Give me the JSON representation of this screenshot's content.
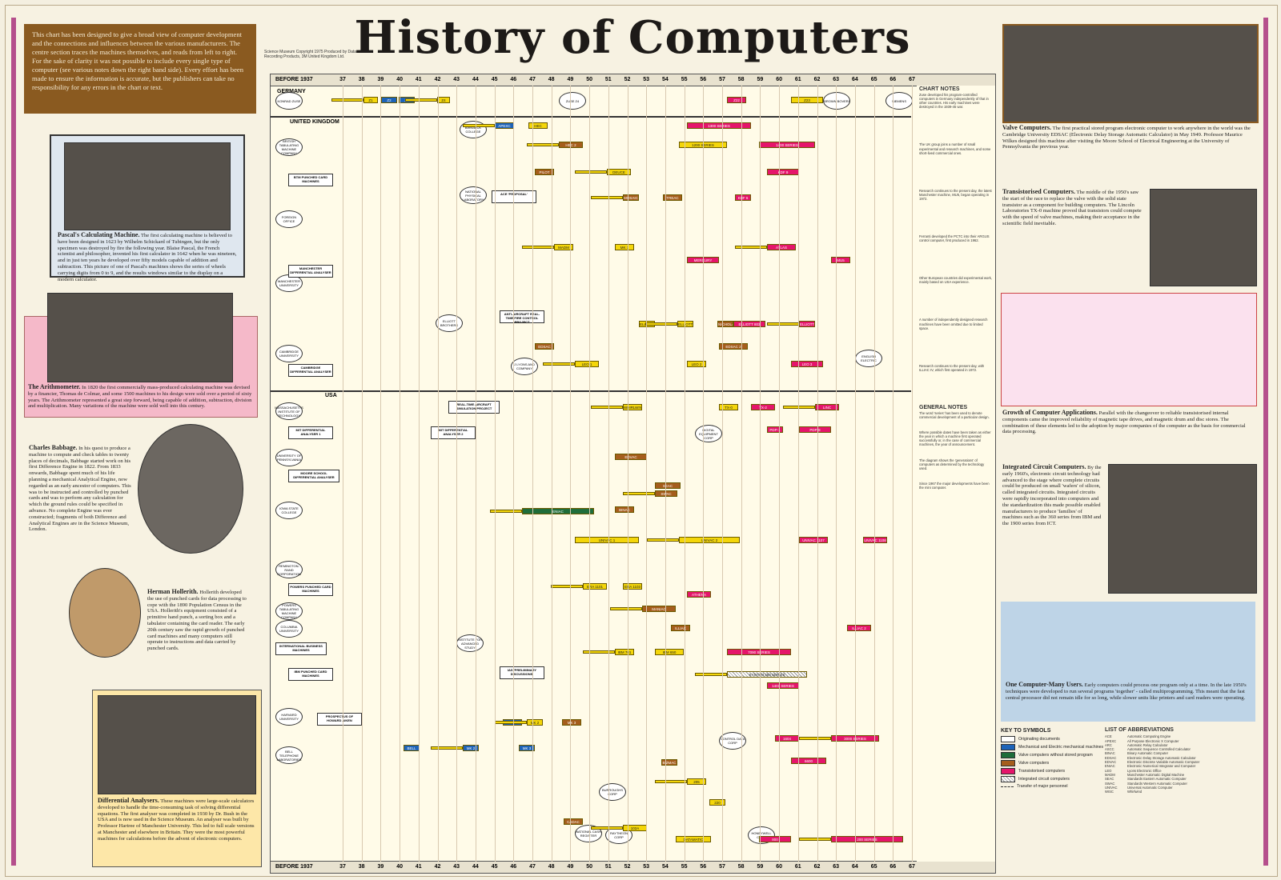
{
  "title": "History of Computers",
  "intro": "This chart has been designed to give a broad view of computer development and the connections and influences between the various manufacturers. The centre section traces the machines themselves, and reads from left to right. For the sake of clarity it was not possible to include every single type of computer (see various notes down the right band side). Every effort has been made to ensure the information is accurate, but the publishers can take no responsibility for any errors in the chart or text.",
  "copyright": "Science Museum Copyright 1975 Produced by Data Recording Products, 3M United Kingdom Ltd.",
  "timeline": {
    "before": "BEFORE 1937",
    "years": [
      "37",
      "38",
      "39",
      "40",
      "41",
      "42",
      "43",
      "44",
      "45",
      "46",
      "47",
      "48",
      "49",
      "50",
      "51",
      "52",
      "53",
      "54",
      "55",
      "56",
      "57",
      "58",
      "59",
      "60",
      "61",
      "62",
      "63",
      "64",
      "65",
      "66",
      "67"
    ],
    "sections": [
      "GERMANY",
      "UNITED KINGDOM",
      "USA"
    ],
    "notes_title": "CHART NOTES",
    "general_title": "GENERAL NOTES"
  },
  "left": {
    "pascal": {
      "title": "Pascal's Calculating Machine.",
      "text": "The first calculating machine is believed to have been designed in 1623 by Wilhelm Schickard of Tubingen, but the only specimen was destroyed by fire the following year. Blaise Pascal, the French scientist and philosopher, invented his first calculator in 1642 when he was nineteen, and in just ten years he developed over fifty models capable of addition and subtraction. This picture of one of Pascal's machines shows the series of wheels carrying digits from 0 to 9, and the results windows similar to the display on a modern calculator."
    },
    "arith": {
      "title": "The Arithmometer.",
      "text": "In 1820 the first commercially mass-produced calculating machine was devised by a financier, Thomas de Colmar, and some 1500 machines to his design were sold over a period of sixty years. The Arithmometer represented a great step forward, being capable of addition, subtraction, division and multiplication. Many variations of the machine were sold well into this century."
    },
    "babbage": {
      "title": "Charles Babbage.",
      "text": "In his quest to produce a machine to compute and check tables to twenty places of decimals, Babbage started work on his first Difference Engine in 1822. From 1833 onwards, Babbage spent much of his life planning a mechanical Analytical Engine, now regarded as an early ancestor of computers. This was to be instructed and controlled by punched cards and was to perform any calculation for which the ground rules could be specified in advance. No complete Engine was ever constructed; fragments of both Difference and Analytical Engines are in the Science Museum, London."
    },
    "hollerith": {
      "title": "Herman Hollerith.",
      "text": "Hollerith developed the use of punched cards for data processing to cope with the 1890 Population Census in the USA. Hollerith's equipment consisted of a primitive hand punch, a sorting box and a tabulator containing the card reader. The early 20th century saw the rapid growth of punched card machines and many computers still operate to instructions and data carried by punched cards."
    },
    "diff": {
      "title": "Differential Analysers.",
      "text": "These machines were large-scale calculators developed to handle the time-consuming task of solving differential equations. The first analyser was completed in 1930 by Dr. Bush in the USA and is now used in the Science Museum. An analyser was built by Professor Hartree of Manchester University. This led to full scale versions at Manchester and elsewhere in Britain. They were the most powerful machines for calculations before the advent of electronic computers."
    }
  },
  "right": {
    "valve": {
      "title": "Valve Computers.",
      "text": "The first practical stored program electronic computer to work anywhere in the world was the Cambridge University EDSAC (Electronic Delay Storage Automatic Calculator) in May 1949. Professor Maurice Wilkes designed this machine after visiting the Moore School of Electrical Engineering at the University of Pennsylvania the previous year."
    },
    "trans": {
      "title": "Transistorised Computers.",
      "text": "The middle of the 1950's saw the start of the race to replace the valve with the solid state transistor as a component for building computers. The Lincoln Laboratories TX-0 machine proved that transistors could compete with the speed of valve machines, making their acceptance in the scientific field inevitable."
    },
    "growth": {
      "title": "Growth of Computer Applications.",
      "text": "Parallel with the changeover to reliable transistorised internal components came the improved reliability of magnetic tape drives, and magnetic drum and disc stores. The combination of these elements led to the adoption by major companies of the computer as the basis for commercial data processing."
    },
    "ic": {
      "title": "Integrated Circuit Computers.",
      "text": "By the early 1960's, electronic circuit technology had advanced to the stage where complete circuits could be produced on small 'wafers' of silicon, called integrated circuits. Integrated circuits were rapidly incorporated into computers and the standardization this made possible enabled manufacturers to produce 'families' of machines such as the 360 series from IBM and the 1900 series from ICT."
    },
    "multi": {
      "title": "One Computer-Many Users.",
      "text": "Early computers could process one program only at a time. In the late 1950's techniques were developed to run several programs 'together' - called multiprogramming. This meant that the fast central processor did not remain idle for so long, while slower units like printers and card readers were operating."
    },
    "key_title": "KEY TO SYMBOLS",
    "key": [
      "Originating documents",
      "Mechanical and Electric mechanical machines",
      "Valve computers without stored program",
      "Valve computers",
      "Transistorised computers",
      "Integrated circuit computers",
      "Transfer of major personnel"
    ],
    "abbr_title": "LIST OF ABBREVIATIONS",
    "abbr": [
      [
        "ACE",
        "Automatic Computing Engine"
      ],
      [
        "APEXC",
        "All Purpose Electronic X Computer"
      ],
      [
        "ARC",
        "Automatic Relay Calculator"
      ],
      [
        "ASCC",
        "Automatic Sequence Controlled Calculator"
      ],
      [
        "BINAC",
        "Binary Automatic Computer"
      ],
      [
        "EDSAC",
        "Electronic Delay Storage Automatic Calculator"
      ],
      [
        "EDVAC",
        "Electronic Discrete Variable Automatic Computer"
      ],
      [
        "ENIAC",
        "Electronic Numerical Integrator and Computer"
      ],
      [
        "LEO",
        "Lyons Electronic Office"
      ],
      [
        "MADM",
        "Manchester Automatic Digital Machine"
      ],
      [
        "SEAC",
        "Standards Eastern Automatic Computer"
      ],
      [
        "SWAC",
        "Standards Western Automatic Computer"
      ],
      [
        "UNIVAC",
        "Universal Automatic Computer"
      ],
      [
        "WISC",
        "Whirlwind"
      ]
    ]
  },
  "notes": [
    "Zuse developed his program-controlled computers in Germany independently of that in other countries. His early machines were destroyed in the 1939-45 war.",
    "The UK group joins a number of small experimental and research machines, and some short-lived commercial ones.",
    "Research continues to the present day, the latest Manchester machine, MU5, began operating in 1972.",
    "Ferranti developed the PCTC into their ARGUS control computer, first produced in 1962.",
    "Other European countries did experimental work, mainly based on USA experience.",
    "A number of independently designed research machines have been omitted due to limited space.",
    "Research continues to the present day, with ILLIAC IV, which first operated in 1972.",
    "The word 'series' has been used to denote commercial development of a particular design.",
    "Where possible dates have been taken as either the year in which a machine first operated successfully or, in the case of commercial machines, the year of announcement.",
    "The diagram shows the 'generations' of computers as determined by the technology used.",
    "Since 1967 the major developments have been the mini computer."
  ],
  "labels": {
    "germany": [
      "KONRAD ZUSE",
      "ZUSE Z4",
      "BROWN BOVERI",
      "SIEMENS"
    ],
    "uk": [
      "BRITISH TABULATING MACHINE COMPANY",
      "BTM PUNCHED CARD MACHINES",
      "BIRKBECK COLLEGE",
      "NATIONAL PHYSICAL LABORATORY",
      "ACE 'PROPOSAL'",
      "FOREIGN OFFICE",
      "MANCHESTER UNIVERSITY",
      "MANCHESTER DIFFERENTIAL ANALYSER",
      "ELLIOTT BROTHERS",
      "ANTI-AIRCRAFT REAL-TIME FIRE CONTROL PROJECT",
      "CAMBRIDGE UNIVERSITY",
      "CAMBRIDGE DIFFERENTIAL ANALYSER",
      "J LYONS AND COMPANY",
      "ENGLISH ELECTRIC"
    ],
    "usa": [
      "MASSACHUSETTS INSTITUTE OF TECHNOLOGY",
      "MIT DIFFERENTIAL ANALYSER 1",
      "REAL-TIME AIRCRAFT SIMULATION PROJECT",
      "MIT DIFFERENTIAL ANALYSER 2",
      "UNIVERSITY OF PENNSYLVANIA",
      "MOORE SCHOOL DIFFERENTIAL ANALYSER",
      "IOWA STATE COLLEGE",
      "REMINGTON-RAND CORPORATION",
      "POWERS PUNCHED CARD MACHINES",
      "POWERS TABULATING MACHINE COMPANY",
      "COLUMBIA UNIVERSITY",
      "INTERNATIONAL BUSINESS MACHINES",
      "IBM PUNCHED CARD MACHINES",
      "HARVARD UNIVERSITY",
      "BELL TELEPHONE LABORATORIES",
      "PROSPECTUS OF HOWARD AIKEN",
      "INSTITUTE FOR ADVANCED STUDY",
      "IAS 'PRELIMINARY DISCUSSIONS'",
      "BURROUGHS CORP",
      "RAYTHEON CORP",
      "DIGITAL EQUIPMENT CORP",
      "CONTROL DATA CORP",
      "NATIONAL CASH REGISTER",
      "HONEYWELL CORP"
    ]
  },
  "bars": [
    [
      "y",
      0,
      "Z1"
    ],
    [
      "b",
      1,
      "Z2"
    ],
    [
      "b",
      2,
      "Z3"
    ],
    [
      "y",
      3,
      "Z4"
    ],
    [
      "p",
      4,
      "Z22"
    ],
    [
      "y",
      5,
      "Z23"
    ],
    [
      "b",
      6,
      "APEXC"
    ],
    [
      "y",
      7,
      "HEC"
    ],
    [
      "y",
      8,
      "1200 SERIES"
    ],
    [
      "br",
      9,
      "HEC 2"
    ],
    [
      "p",
      10,
      "1300 SERIES"
    ],
    [
      "p",
      11,
      "1400 SERIES"
    ],
    [
      "y",
      12,
      "DEUCE"
    ],
    [
      "br",
      13,
      "PILOT ACE"
    ],
    [
      "p",
      14,
      "KDF 9"
    ],
    [
      "br",
      15,
      "MOSAIC"
    ],
    [
      "br",
      16,
      "TREAC"
    ],
    [
      "p",
      17,
      "KDF 6"
    ],
    [
      "y",
      18,
      "MADM"
    ],
    [
      "y",
      19,
      "MK 1"
    ],
    [
      "p",
      20,
      "MERCURY"
    ],
    [
      "p",
      21,
      "ATLAS"
    ],
    [
      "p",
      22,
      "MU5"
    ],
    [
      "y",
      23,
      "ELLIOTT 152"
    ],
    [
      "y",
      24,
      "ELLIOTT 153"
    ],
    [
      "br",
      25,
      "NICHOLAS"
    ],
    [
      "p",
      26,
      "ELLIOTT 803"
    ],
    [
      "p",
      27,
      "ELLIOTT 503"
    ],
    [
      "br",
      28,
      "EDSAC"
    ],
    [
      "br",
      29,
      "EDSAC 2"
    ],
    [
      "y",
      30,
      "LEO 1"
    ],
    [
      "y",
      31,
      "LEO 2"
    ],
    [
      "p",
      32,
      "LEO 3"
    ],
    [
      "y",
      33,
      "WHIRLWIND"
    ],
    [
      "y",
      34,
      "TX-0"
    ],
    [
      "p",
      35,
      "TX-2"
    ],
    [
      "p",
      36,
      "LINC"
    ],
    [
      "p",
      37,
      "PDP-1"
    ],
    [
      "p",
      38,
      "PDP-8"
    ],
    [
      "g",
      39,
      "ENIAC"
    ],
    [
      "br",
      40,
      "EDVAC"
    ],
    [
      "br",
      41,
      "SEAC"
    ],
    [
      "br",
      42,
      "SWAC"
    ],
    [
      "br",
      43,
      "BINAC"
    ],
    [
      "y",
      44,
      "UNIVAC 1"
    ],
    [
      "y",
      45,
      "UNIVAC 2"
    ],
    [
      "p",
      46,
      "UNIVAC 1107"
    ],
    [
      "p",
      47,
      "UNIVAC 1108"
    ],
    [
      "y",
      48,
      "ERA 1101"
    ],
    [
      "y",
      49,
      "ERA 1103"
    ],
    [
      "p",
      50,
      "ATHENA"
    ],
    [
      "br",
      51,
      "MANIAC"
    ],
    [
      "br",
      52,
      "ILLIAC"
    ],
    [
      "p",
      53,
      "ILLIAC 2"
    ],
    [
      "y",
      54,
      "IBM 701"
    ],
    [
      "y",
      55,
      "IBM 650"
    ],
    [
      "p",
      56,
      "7090 SERIES"
    ],
    [
      "h",
      57,
      "SYSTEM 360 SERIES"
    ],
    [
      "p",
      58,
      "1401 SERIES"
    ],
    [
      "b",
      59,
      "HARVARD MK 1"
    ],
    [
      "y",
      60,
      "MK 2"
    ],
    [
      "br",
      61,
      "MK 3"
    ],
    [
      "b",
      62,
      "BELL MK 1"
    ],
    [
      "b",
      63,
      "MK 2"
    ],
    [
      "b",
      64,
      "MK 3"
    ],
    [
      "p",
      65,
      "1604"
    ],
    [
      "p",
      66,
      "3000 SERIES"
    ],
    [
      "p",
      67,
      "6600"
    ],
    [
      "br",
      68,
      "BIZMAC"
    ],
    [
      "y",
      69,
      "205"
    ],
    [
      "y",
      70,
      "220"
    ],
    [
      "br",
      71,
      "CADAC"
    ],
    [
      "y",
      72,
      "102A"
    ],
    [
      "y",
      73,
      "DATAMATIC"
    ],
    [
      "p",
      74,
      "800"
    ],
    [
      "p",
      75,
      "200 SERIES"
    ]
  ]
}
